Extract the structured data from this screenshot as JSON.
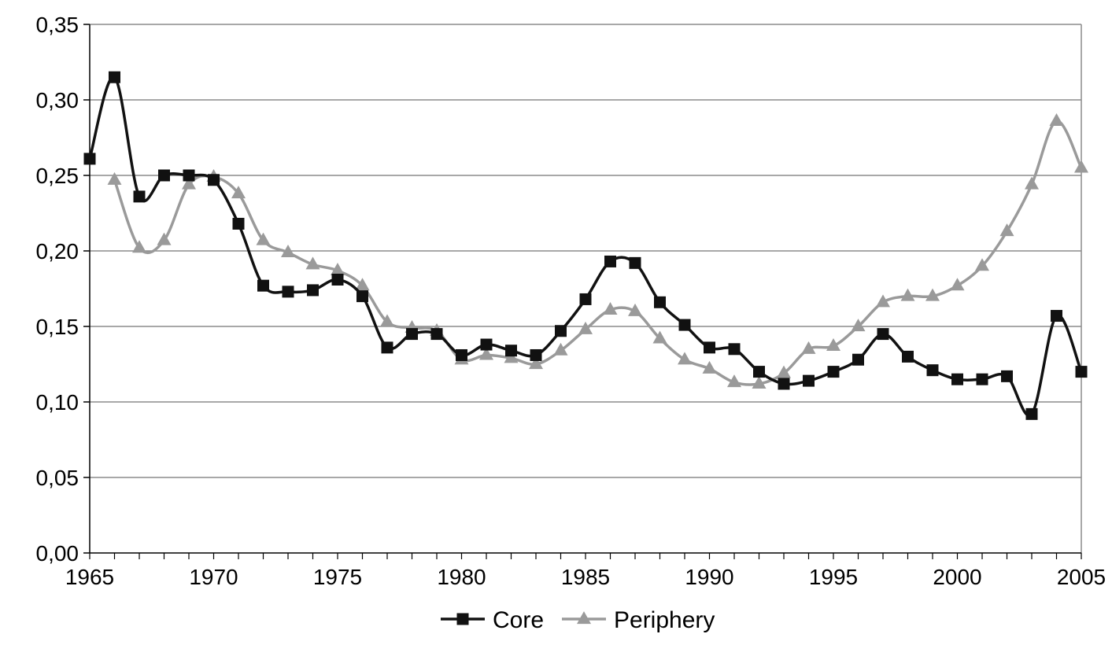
{
  "chart_data": {
    "type": "line",
    "title": "",
    "xlabel": "",
    "ylabel": "",
    "xlim": [
      1965,
      2005
    ],
    "ylim": [
      0,
      0.35
    ],
    "x_ticks": [
      1965,
      1970,
      1975,
      1980,
      1985,
      1990,
      1995,
      2000,
      2005
    ],
    "x_tick_labels": [
      "1965",
      "1970",
      "1975",
      "1980",
      "1985",
      "1990",
      "1995",
      "2000",
      "2005"
    ],
    "y_ticks": [
      0,
      0.05,
      0.1,
      0.15,
      0.2,
      0.25,
      0.3,
      0.35
    ],
    "y_tick_labels": [
      "0,00",
      "0,05",
      "0,10",
      "0,15",
      "0,20",
      "0,25",
      "0,30",
      "0,35"
    ],
    "grid": "horizontal",
    "legend_position": "bottom",
    "series": [
      {
        "name": "Core",
        "color": "#111111",
        "marker": "square",
        "x": [
          1965,
          1966,
          1967,
          1968,
          1969,
          1970,
          1971,
          1972,
          1973,
          1974,
          1975,
          1976,
          1977,
          1978,
          1979,
          1980,
          1981,
          1982,
          1983,
          1984,
          1985,
          1986,
          1987,
          1988,
          1989,
          1990,
          1991,
          1992,
          1993,
          1994,
          1995,
          1996,
          1997,
          1998,
          1999,
          2000,
          2001,
          2002,
          2003,
          2004,
          2005
        ],
        "values": [
          0.261,
          0.315,
          0.236,
          0.25,
          0.25,
          0.247,
          0.218,
          0.177,
          0.173,
          0.174,
          0.181,
          0.17,
          0.136,
          0.145,
          0.145,
          0.131,
          0.138,
          0.134,
          0.131,
          0.147,
          0.168,
          0.193,
          0.192,
          0.166,
          0.151,
          0.136,
          0.135,
          0.12,
          0.112,
          0.114,
          0.12,
          0.128,
          0.145,
          0.13,
          0.121,
          0.115,
          0.115,
          0.117,
          0.092,
          0.157,
          0.12
        ]
      },
      {
        "name": "Periphery",
        "color": "#9a9a9a",
        "marker": "triangle",
        "x": [
          1966,
          1967,
          1968,
          1969,
          1970,
          1971,
          1972,
          1973,
          1974,
          1975,
          1976,
          1977,
          1978,
          1979,
          1980,
          1981,
          1982,
          1983,
          1984,
          1985,
          1986,
          1987,
          1988,
          1989,
          1990,
          1991,
          1992,
          1993,
          1994,
          1995,
          1996,
          1997,
          1998,
          1999,
          2000,
          2001,
          2002,
          2003,
          2004,
          2005
        ],
        "values": [
          0.247,
          0.202,
          0.207,
          0.244,
          0.249,
          0.238,
          0.207,
          0.199,
          0.191,
          0.187,
          0.177,
          0.153,
          0.149,
          0.147,
          0.128,
          0.131,
          0.129,
          0.125,
          0.134,
          0.148,
          0.161,
          0.16,
          0.142,
          0.128,
          0.122,
          0.113,
          0.112,
          0.119,
          0.135,
          0.137,
          0.15,
          0.166,
          0.17,
          0.17,
          0.177,
          0.19,
          0.213,
          0.244,
          0.286,
          0.255
        ]
      }
    ]
  }
}
